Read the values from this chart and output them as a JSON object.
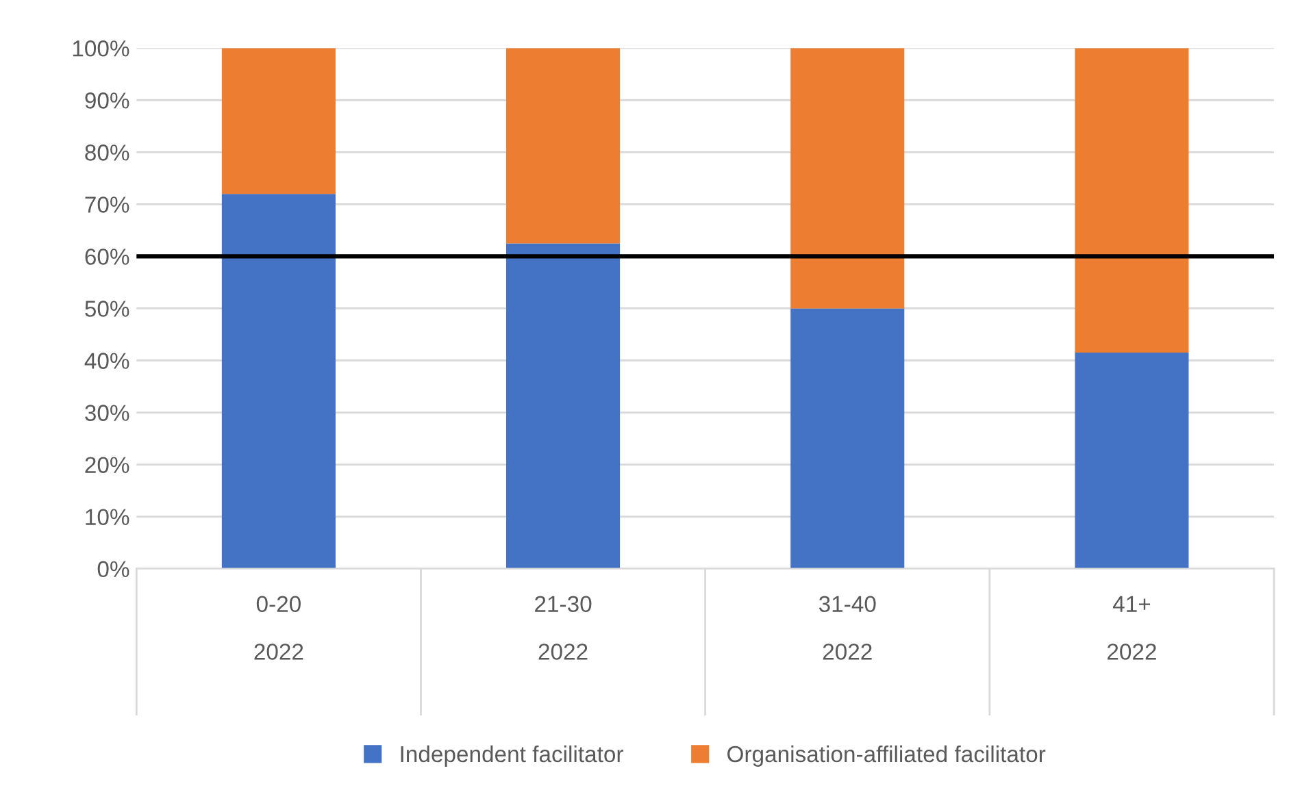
{
  "chart_data": {
    "type": "bar",
    "stacked": true,
    "categories": [
      "0-20\n2022",
      "21-30\n2022",
      "31-40\n2022",
      "41+\n2022"
    ],
    "series": [
      {
        "name": "Independent facilitator",
        "color": "#4472c4",
        "values": [
          72,
          62.5,
          50,
          41.5
        ]
      },
      {
        "name": "Organisation-affiliated facilitator",
        "color": "#ed7d31",
        "values": [
          28,
          37.5,
          50,
          58.5
        ]
      }
    ],
    "ylim": [
      0,
      100
    ],
    "yticks": [
      {
        "value": 0,
        "label": "0%"
      },
      {
        "value": 10,
        "label": "10%"
      },
      {
        "value": 20,
        "label": "20%"
      },
      {
        "value": 30,
        "label": "30%"
      },
      {
        "value": 40,
        "label": "40%"
      },
      {
        "value": 50,
        "label": "50%"
      },
      {
        "value": 60,
        "label": "60%"
      },
      {
        "value": 70,
        "label": "70%"
      },
      {
        "value": 80,
        "label": "80%"
      },
      {
        "value": 90,
        "label": "90%"
      },
      {
        "value": 100,
        "label": "100%"
      }
    ],
    "ref_lines": [
      {
        "axis": "y",
        "value": 60,
        "color": "#000000",
        "line_style": "solid"
      }
    ],
    "grid": "y",
    "legend": "bottom"
  }
}
